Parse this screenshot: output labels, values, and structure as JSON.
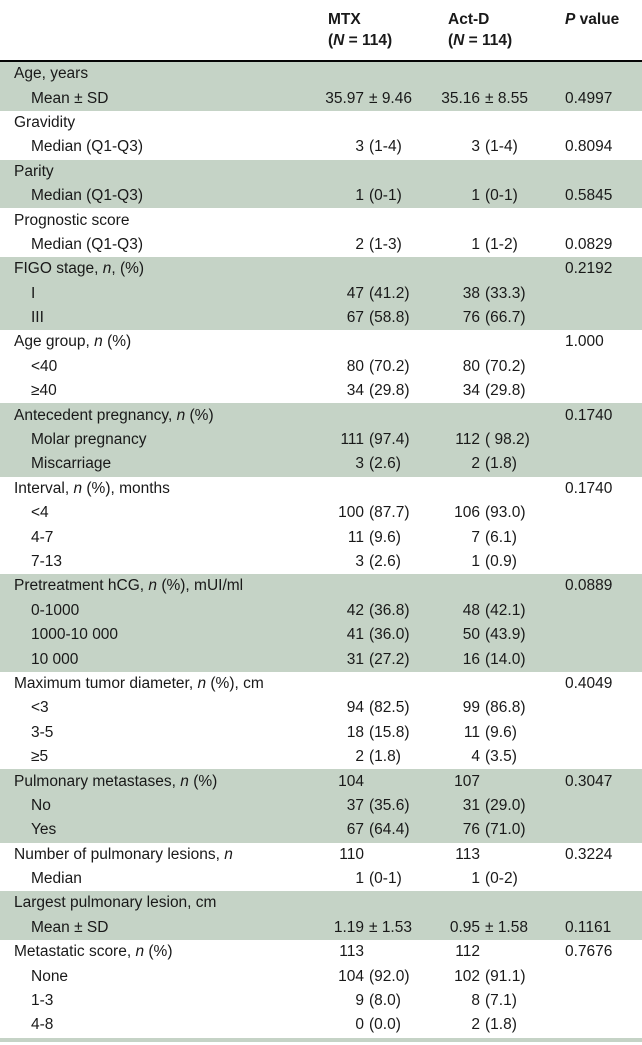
{
  "table": {
    "header": {
      "mtx": {
        "line1": "MTX",
        "line2": "(*N* = 114)"
      },
      "actd": {
        "line1": "Act-D",
        "line2": "(*N* = 114)"
      },
      "p": {
        "line1": "*P* value",
        "line2": ""
      }
    },
    "colors": {
      "stripe_green": "#c5d3c6",
      "header_rule": "#060606",
      "text": "#191919"
    },
    "groups": [
      {
        "shade": "green",
        "rows": [
          {
            "label": "Age, years",
            "indent": 0,
            "mtx": "",
            "actd": "",
            "p": ""
          },
          {
            "label": "Mean ± SD",
            "indent": 1,
            "mtx": "35.97 ± 9.46",
            "actd": "35.16 ± 8.55",
            "p": "0.4997"
          }
        ]
      },
      {
        "shade": "white",
        "rows": [
          {
            "label": "Gravidity",
            "indent": 0,
            "mtx": "",
            "actd": "",
            "p": ""
          },
          {
            "label": "Median (Q1-Q3)",
            "indent": 1,
            "mtx": "3 (1-4)",
            "actd": "3 (1-4)",
            "p": "0.8094"
          }
        ]
      },
      {
        "shade": "green",
        "rows": [
          {
            "label": "Parity",
            "indent": 0,
            "mtx": "",
            "actd": "",
            "p": ""
          },
          {
            "label": "Median (Q1-Q3)",
            "indent": 1,
            "mtx": "1 (0-1)",
            "actd": "1 (0-1)",
            "p": "0.5845"
          }
        ]
      },
      {
        "shade": "white",
        "rows": [
          {
            "label": "Prognostic score",
            "indent": 0,
            "mtx": "",
            "actd": "",
            "p": ""
          },
          {
            "label": "Median (Q1-Q3)",
            "indent": 1,
            "mtx": "2 (1-3)",
            "actd": "1 (1-2)",
            "p": "0.0829"
          }
        ]
      },
      {
        "shade": "green",
        "rows": [
          {
            "label": "FIGO stage, *n*, (%)",
            "indent": 0,
            "mtx": "",
            "actd": "",
            "p": "0.2192"
          },
          {
            "label": "I",
            "indent": 1,
            "mtx": "47 (41.2)",
            "actd": "38 (33.3)",
            "p": ""
          },
          {
            "label": "III",
            "indent": 1,
            "mtx": "67 (58.8)",
            "actd": "76 (66.7)",
            "p": ""
          }
        ]
      },
      {
        "shade": "white",
        "rows": [
          {
            "label": "Age group, *n* (%)",
            "indent": 0,
            "mtx": "",
            "actd": "",
            "p": "1.000"
          },
          {
            "label": "<40",
            "indent": 1,
            "mtx": "80 (70.2)",
            "actd": "80 (70.2)",
            "p": ""
          },
          {
            "label": "≥40",
            "indent": 1,
            "mtx": "34 (29.8)",
            "actd": "34 (29.8)",
            "p": ""
          }
        ]
      },
      {
        "shade": "green",
        "rows": [
          {
            "label": "Antecedent pregnancy, *n* (%)",
            "indent": 0,
            "mtx": "",
            "actd": "",
            "p": "0.1740"
          },
          {
            "label": "Molar pregnancy",
            "indent": 1,
            "mtx": "111 (97.4)",
            "actd": "112 ( 98.2)",
            "p": ""
          },
          {
            "label": "Miscarriage",
            "indent": 1,
            "mtx": "3 (2.6)",
            "actd": "2 (1.8)",
            "p": ""
          }
        ]
      },
      {
        "shade": "white",
        "rows": [
          {
            "label": "Interval, *n* (%), months",
            "indent": 0,
            "mtx": "",
            "actd": "",
            "p": "0.1740"
          },
          {
            "label": "<4",
            "indent": 1,
            "mtx": "100 (87.7)",
            "actd": "106 (93.0)",
            "p": ""
          },
          {
            "label": "4-7",
            "indent": 1,
            "mtx": "11 (9.6)",
            "actd": "7 (6.1)",
            "p": ""
          },
          {
            "label": "7-13",
            "indent": 1,
            "mtx": "3 (2.6)",
            "actd": "1 (0.9)",
            "p": ""
          }
        ]
      },
      {
        "shade": "green",
        "rows": [
          {
            "label": "Pretreatment hCG, *n* (%), mUI/ml",
            "indent": 0,
            "mtx": "",
            "actd": "",
            "p": "0.0889"
          },
          {
            "label": "0-1000",
            "indent": 1,
            "mtx": "42 (36.8)",
            "actd": "48 (42.1)",
            "p": ""
          },
          {
            "label": "1000-10 000",
            "indent": 1,
            "mtx": "41 (36.0)",
            "actd": "50 (43.9)",
            "p": ""
          },
          {
            "label": "10 000",
            "indent": 1,
            "mtx": "31 (27.2)",
            "actd": "16 (14.0)",
            "p": ""
          }
        ]
      },
      {
        "shade": "white",
        "rows": [
          {
            "label": "Maximum tumor diameter, *n* (%), cm",
            "indent": 0,
            "mtx": "",
            "actd": "",
            "p": "0.4049"
          },
          {
            "label": "<3",
            "indent": 1,
            "mtx": "94 (82.5)",
            "actd": "99 (86.8)",
            "p": ""
          },
          {
            "label": "3-5",
            "indent": 1,
            "mtx": "18 (15.8)",
            "actd": "11 (9.6)",
            "p": ""
          },
          {
            "label": "≥5",
            "indent": 1,
            "mtx": "2 (1.8)",
            "actd": "4 (3.5)",
            "p": ""
          }
        ]
      },
      {
        "shade": "green",
        "rows": [
          {
            "label": "Pulmonary metastases, *n* (%)",
            "indent": 0,
            "mtx": "104",
            "actd": "107",
            "p": "0.3047"
          },
          {
            "label": "No",
            "indent": 1,
            "mtx": "37 (35.6)",
            "actd": "31 (29.0)",
            "p": ""
          },
          {
            "label": "Yes",
            "indent": 1,
            "mtx": "67 (64.4)",
            "actd": "76 (71.0)",
            "p": ""
          }
        ]
      },
      {
        "shade": "white",
        "rows": [
          {
            "label": "Number of pulmonary lesions, *n*",
            "indent": 0,
            "mtx": "110",
            "actd": "113",
            "p": "0.3224"
          },
          {
            "label": "Median",
            "indent": 1,
            "mtx": "1 (0-1)",
            "actd": "1 (0-2)",
            "p": ""
          }
        ]
      },
      {
        "shade": "green",
        "rows": [
          {
            "label": "Largest pulmonary lesion, cm",
            "indent": 0,
            "mtx": "",
            "actd": "",
            "p": ""
          },
          {
            "label": "Mean ± SD",
            "indent": 1,
            "mtx": "1.19 ± 1.53",
            "actd": "0.95 ± 1.58",
            "p": "0.1161"
          }
        ]
      },
      {
        "shade": "white",
        "rows": [
          {
            "label": "Metastatic score, *n* (%)",
            "indent": 0,
            "mtx": "113",
            "actd": "112",
            "p": "0.7676"
          },
          {
            "label": "None",
            "indent": 1,
            "mtx": "104 (92.0)",
            "actd": "102 (91.1)",
            "p": ""
          },
          {
            "label": "1-3",
            "indent": 1,
            "mtx": "9 (8.0)",
            "actd": "8 (7.1)",
            "p": ""
          },
          {
            "label": "4-8",
            "indent": 1,
            "mtx": "0 (0.0)",
            "actd": "2 (1.8)",
            "p": ""
          }
        ]
      }
    ]
  }
}
